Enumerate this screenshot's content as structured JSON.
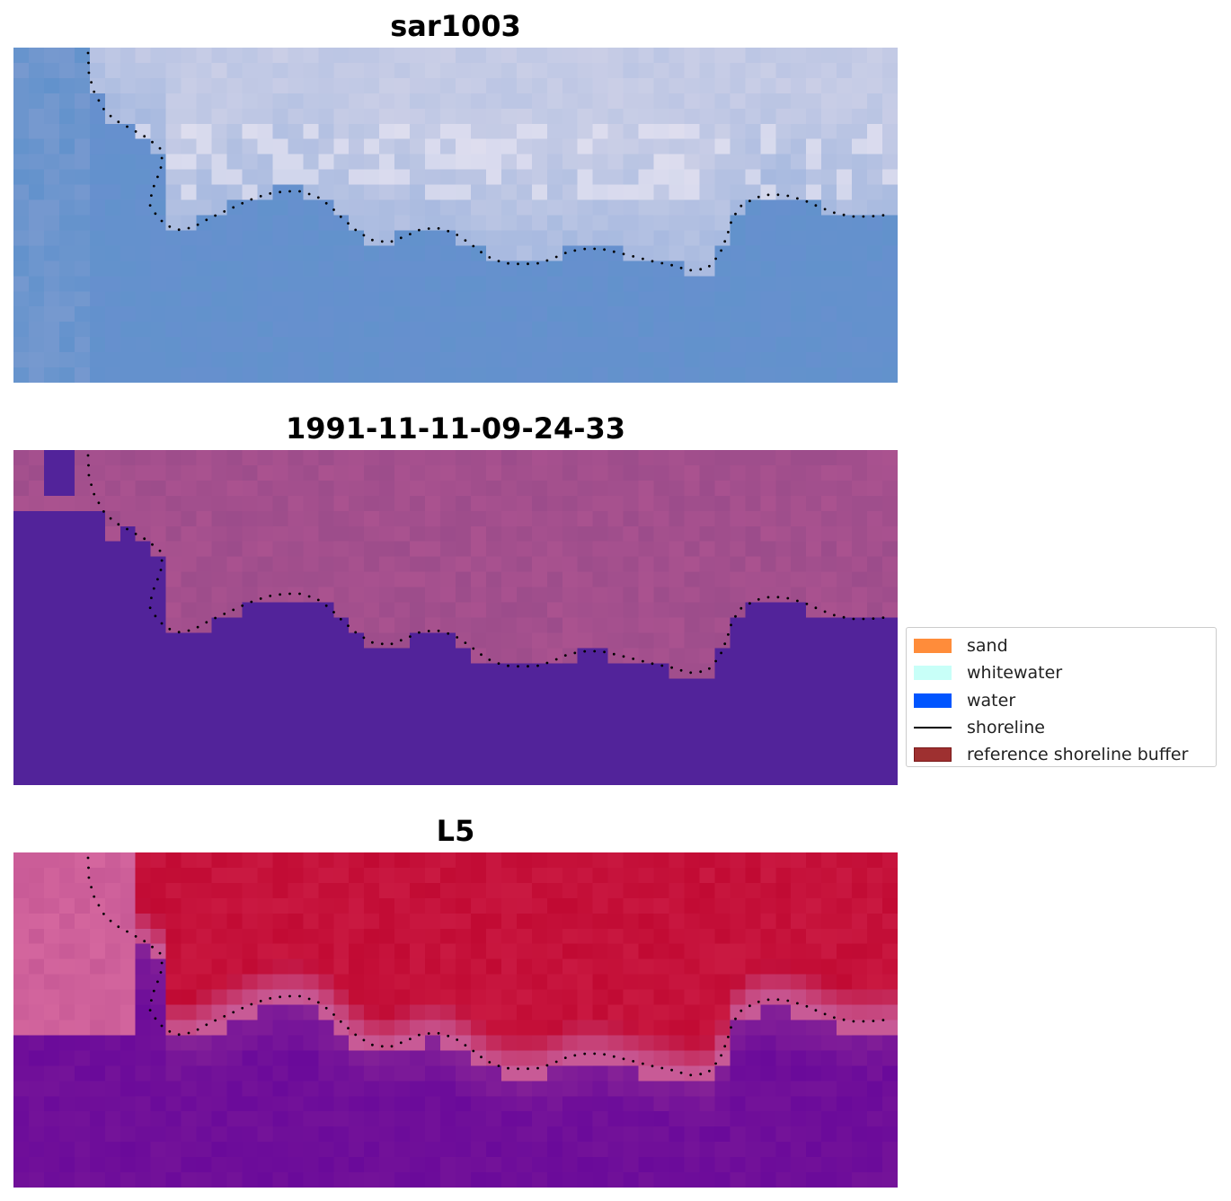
{
  "panels": [
    {
      "title": "sar1003",
      "style": "sar"
    },
    {
      "title": "1991-11-11-09-24-33",
      "style": "classified"
    },
    {
      "title": "L5",
      "style": "l5"
    }
  ],
  "legend": {
    "items": [
      {
        "label": "sand",
        "color": "#ff8c3a",
        "kind": "patch"
      },
      {
        "label": "whitewater",
        "color": "#c8fff8",
        "kind": "patch"
      },
      {
        "label": "water",
        "color": "#0055ff",
        "kind": "patch"
      },
      {
        "label": "shoreline",
        "color": "#000000",
        "kind": "line"
      },
      {
        "label": "reference shoreline buffer",
        "color": "#9e3030",
        "kind": "patch"
      }
    ]
  },
  "colors": {
    "shoreline_dots": "#000000",
    "class_water": "#52239a",
    "class_land": "#a04e8c",
    "sar_water": "#6292cc",
    "sar_land": "#c8cde6",
    "l5_land": "#c10a33",
    "l5_water": "#6a0a9a"
  }
}
